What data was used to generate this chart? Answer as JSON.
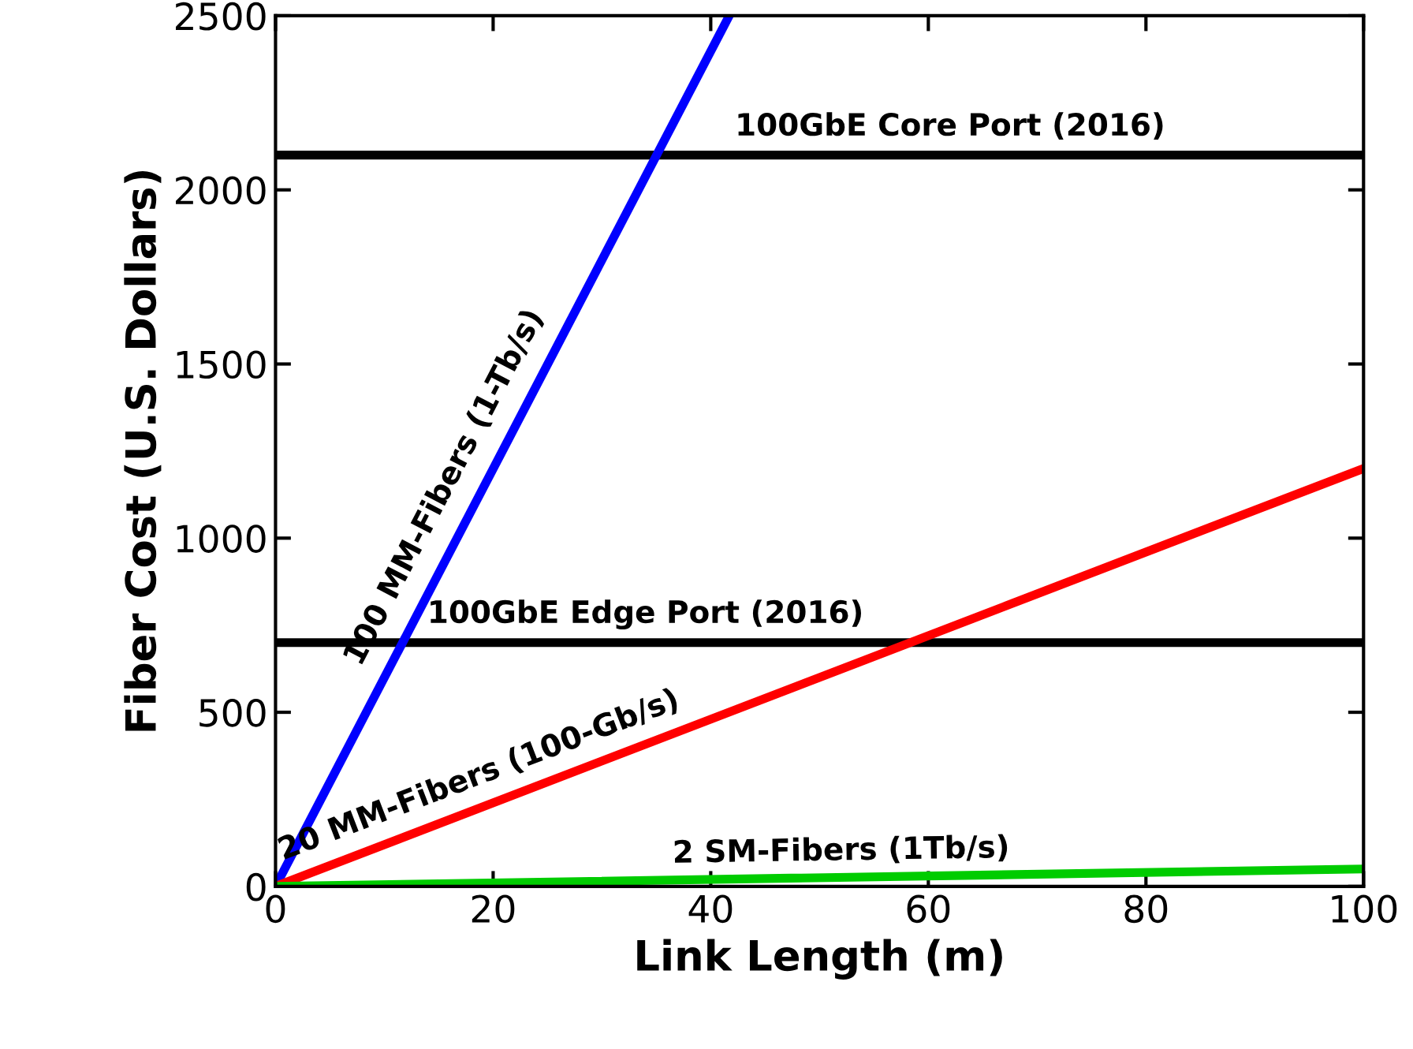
{
  "chart_data": {
    "type": "line",
    "xlabel": "Link Length (m)",
    "ylabel": "Fiber Cost (U.S. Dollars)",
    "xlim": [
      0,
      100
    ],
    "ylim": [
      0,
      2500
    ],
    "xticks": [
      0,
      20,
      40,
      60,
      80,
      100
    ],
    "yticks": [
      0,
      500,
      1000,
      1500,
      2000,
      2500
    ],
    "grid": false,
    "legend": false,
    "marker": "none",
    "line_style": "solid",
    "series": [
      {
        "name": "100 MM-Fibers (1-Tb/s)",
        "color": "#0000ff",
        "x": [
          0,
          41.7
        ],
        "values": [
          0,
          2500
        ]
      },
      {
        "name": "20 MM-Fibers (100-Gb/s)",
        "color": "#ff0000",
        "x": [
          0,
          100
        ],
        "values": [
          0,
          1200
        ]
      },
      {
        "name": "2 SM-Fibers (1Tb/s)",
        "color": "#00cc00",
        "x": [
          0,
          100
        ],
        "values": [
          0,
          50
        ]
      }
    ],
    "ref_lines": [
      {
        "axis": "y",
        "value": 2100,
        "label": "100GbE Core Port (2016)",
        "color": "#000000"
      },
      {
        "axis": "y",
        "value": 700,
        "label": "100GbE Edge Port (2016)",
        "color": "#000000"
      }
    ]
  }
}
